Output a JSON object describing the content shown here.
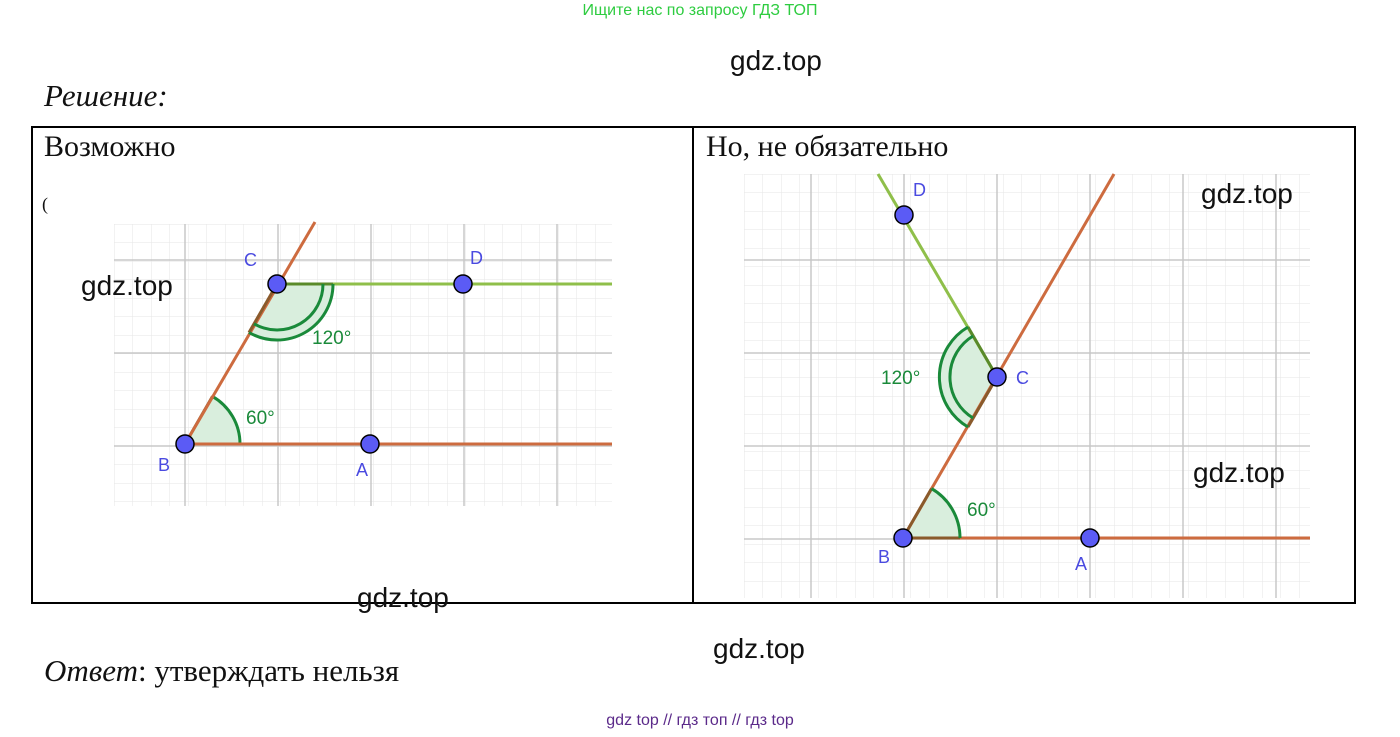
{
  "top_banner": "Ищите нас по запросу ГДЗ ТОП",
  "watermark": "gdz.top",
  "heading": "Решение:",
  "cells": {
    "left": {
      "title": "Возможно",
      "stray_char": "("
    },
    "right": {
      "title": "Но, не обязательно"
    }
  },
  "figures": {
    "left": {
      "points": {
        "A": "A",
        "B": "B",
        "C": "C",
        "D": "D"
      },
      "angle_small": "60°",
      "angle_large": "120°"
    },
    "right": {
      "points": {
        "A": "A",
        "B": "B",
        "C": "C",
        "D": "D"
      },
      "angle_small": "60°",
      "angle_large": "120°"
    }
  },
  "answer": {
    "label": "Ответ",
    "text": ": утверждать нельзя"
  },
  "footer": "gdz top  //  гдз топ  //  гдз top",
  "colors": {
    "banner": "#2ecc40",
    "footer": "#5b2a8a",
    "ray_brown": "#cd6b3f",
    "ray_green": "#8fbf4a",
    "angle_arc": "#1a8a3a",
    "angle_fill": "#d9eedd",
    "point": "#5b5bf5",
    "grid": "#dcdcdc"
  }
}
